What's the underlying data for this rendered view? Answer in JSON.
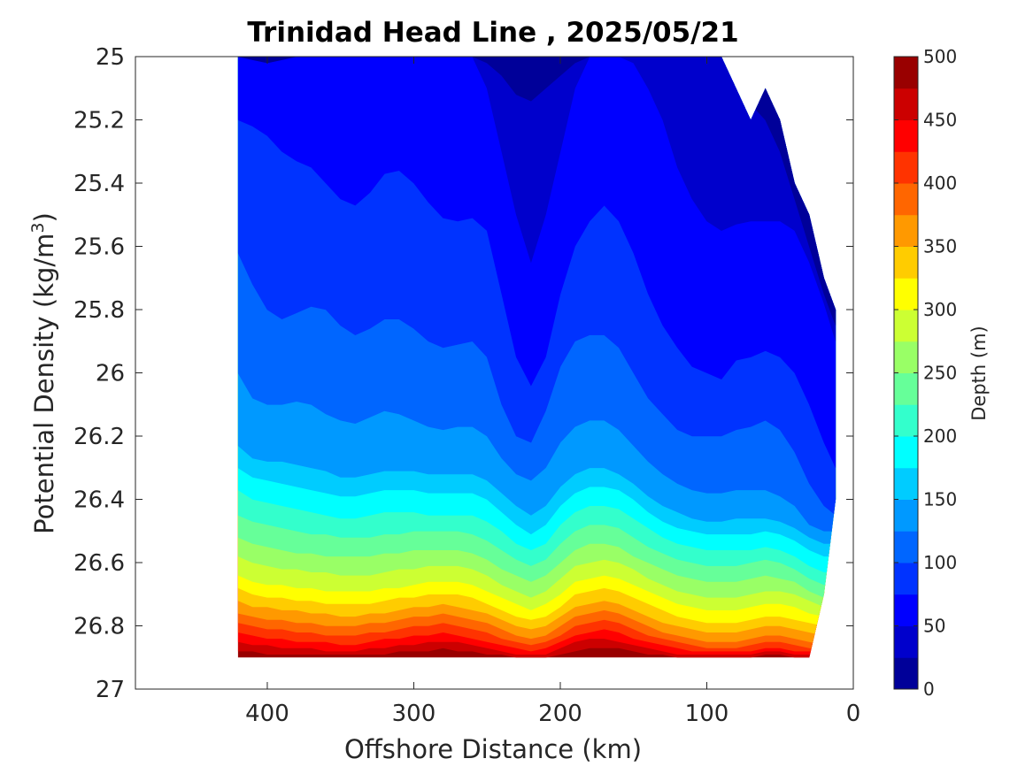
{
  "chart_data": {
    "type": "contour",
    "title": "Trinidad Head Line , 2025/05/21",
    "xlabel": "Offshore Distance (km)",
    "ylabel_main": "Potential Density (kg/m",
    "ylabel_sup": "3",
    "ylabel_tail": ")",
    "xlim": [
      490,
      0
    ],
    "x_reversed": true,
    "ylim": [
      25,
      27
    ],
    "y_reversed": true,
    "x_ticks": [
      400,
      300,
      200,
      100,
      0
    ],
    "y_ticks": [
      25,
      25.2,
      25.4,
      25.6,
      25.8,
      26,
      26.2,
      26.4,
      26.6,
      26.8,
      27
    ],
    "grid": false,
    "colorbar": {
      "label": "Depth (m)",
      "limits": [
        0,
        500
      ],
      "ticks": [
        0,
        50,
        100,
        150,
        200,
        250,
        300,
        350,
        400,
        450,
        500
      ],
      "n_levels": 20,
      "colormap": "jet"
    },
    "data_extent": {
      "x_min": 12,
      "x_max": 420,
      "y_bottom": 26.9
    },
    "stations_x": [
      420,
      410,
      400,
      390,
      380,
      370,
      360,
      350,
      340,
      330,
      320,
      310,
      300,
      290,
      280,
      270,
      260,
      250,
      240,
      230,
      220,
      210,
      200,
      190,
      180,
      170,
      160,
      150,
      140,
      130,
      120,
      110,
      100,
      90,
      80,
      70,
      60,
      50,
      40,
      30,
      20,
      12
    ],
    "top_edge_density": [
      25,
      25,
      25,
      25,
      25,
      25,
      25,
      25,
      25,
      25,
      25,
      25,
      25,
      25,
      25,
      25,
      25,
      25,
      25,
      25,
      25,
      25,
      25,
      25,
      25,
      25,
      25,
      25,
      25,
      25,
      25,
      25,
      25,
      25,
      25.1,
      25.2,
      25.1,
      25.2,
      25.4,
      25.5,
      25.7,
      25.8
    ],
    "bottom_edge_density": [
      26.9,
      26.9,
      26.9,
      26.9,
      26.9,
      26.9,
      26.9,
      26.9,
      26.9,
      26.9,
      26.9,
      26.9,
      26.9,
      26.9,
      26.9,
      26.9,
      26.9,
      26.9,
      26.9,
      26.9,
      26.9,
      26.9,
      26.9,
      26.9,
      26.9,
      26.9,
      26.9,
      26.9,
      26.9,
      26.9,
      26.9,
      26.9,
      26.9,
      26.9,
      26.9,
      26.9,
      26.9,
      26.9,
      26.9,
      26.9,
      26.7,
      26.4
    ],
    "contour_levels_m": [
      25,
      50,
      75,
      100,
      125,
      150,
      175,
      200,
      225,
      250,
      275,
      300,
      325,
      350,
      375,
      400,
      425,
      450,
      475
    ],
    "contour_density_at_level": [
      [
        25.0,
        25.01,
        25.02,
        25.01,
        25.0,
        25.0,
        25.0,
        25.0,
        25.0,
        25.0,
        25.0,
        25.0,
        25.0,
        25.0,
        25.0,
        25.0,
        25.0,
        25.02,
        25.06,
        25.12,
        25.14,
        25.1,
        25.06,
        25.02,
        25.0,
        25.0,
        25.0,
        25.0,
        25.0,
        25.0,
        25.0,
        25.0,
        25.0,
        25.0,
        25.05,
        25.15,
        25.2,
        25.3,
        25.45,
        25.6,
        25.75,
        25.85
      ],
      [
        25.0,
        25.0,
        25.0,
        25.0,
        25.0,
        25.0,
        25.0,
        25.0,
        25.0,
        25.0,
        25.0,
        25.0,
        25.0,
        25.0,
        25.0,
        25.0,
        25.0,
        25.1,
        25.3,
        25.5,
        25.65,
        25.5,
        25.3,
        25.1,
        25.0,
        25.0,
        25.0,
        25.02,
        25.1,
        25.2,
        25.35,
        25.45,
        25.52,
        25.55,
        25.53,
        25.52,
        25.52,
        25.52,
        25.55,
        25.65,
        25.78,
        25.9
      ],
      [
        25.2,
        25.22,
        25.25,
        25.3,
        25.33,
        25.35,
        25.4,
        25.45,
        25.47,
        25.43,
        25.37,
        25.36,
        25.4,
        25.46,
        25.51,
        25.52,
        25.51,
        25.55,
        25.75,
        25.95,
        26.04,
        25.95,
        25.75,
        25.6,
        25.52,
        25.47,
        25.52,
        25.62,
        25.75,
        25.85,
        25.92,
        25.98,
        26.0,
        26.02,
        25.96,
        25.95,
        25.93,
        25.95,
        26.0,
        26.1,
        26.22,
        26.3
      ],
      [
        25.62,
        25.72,
        25.8,
        25.83,
        25.81,
        25.79,
        25.8,
        25.85,
        25.88,
        25.86,
        25.83,
        25.83,
        25.86,
        25.9,
        25.92,
        25.91,
        25.9,
        25.95,
        26.1,
        26.2,
        26.22,
        26.12,
        25.98,
        25.9,
        25.88,
        25.88,
        25.92,
        26.0,
        26.08,
        26.13,
        26.18,
        26.2,
        26.2,
        26.2,
        26.18,
        26.17,
        26.15,
        26.18,
        26.25,
        26.35,
        26.42,
        26.45
      ],
      [
        26.0,
        26.08,
        26.1,
        26.1,
        26.09,
        26.1,
        26.13,
        26.15,
        26.16,
        26.14,
        26.12,
        26.13,
        26.15,
        26.17,
        26.18,
        26.17,
        26.17,
        26.2,
        26.27,
        26.32,
        26.34,
        26.3,
        26.22,
        26.17,
        26.15,
        26.15,
        26.18,
        26.23,
        26.28,
        26.32,
        26.35,
        26.37,
        26.38,
        26.38,
        26.37,
        26.37,
        26.37,
        26.39,
        26.42,
        26.48,
        26.5,
        26.5
      ],
      [
        26.23,
        26.27,
        26.28,
        26.28,
        26.29,
        26.3,
        26.31,
        26.33,
        26.33,
        26.32,
        26.31,
        26.31,
        26.31,
        26.32,
        26.32,
        26.32,
        26.32,
        26.34,
        26.38,
        26.42,
        26.45,
        26.42,
        26.36,
        26.32,
        26.3,
        26.3,
        26.32,
        26.35,
        26.39,
        26.42,
        26.44,
        26.46,
        26.47,
        26.47,
        26.46,
        26.46,
        26.46,
        26.47,
        26.49,
        26.52,
        26.54,
        26.54
      ],
      [
        26.3,
        26.33,
        26.34,
        26.35,
        26.36,
        26.37,
        26.38,
        26.39,
        26.39,
        26.38,
        26.37,
        26.37,
        26.37,
        26.38,
        26.38,
        26.38,
        26.38,
        26.4,
        26.44,
        26.48,
        26.51,
        26.48,
        26.42,
        26.38,
        26.36,
        26.36,
        26.37,
        26.4,
        26.44,
        26.47,
        26.49,
        26.5,
        26.51,
        26.51,
        26.51,
        26.51,
        26.5,
        26.51,
        26.53,
        26.56,
        26.58,
        26.58
      ],
      [
        26.37,
        26.4,
        26.41,
        26.42,
        26.43,
        26.44,
        26.45,
        26.46,
        26.46,
        26.45,
        26.44,
        26.44,
        26.44,
        26.45,
        26.45,
        26.45,
        26.45,
        26.47,
        26.5,
        26.54,
        26.56,
        26.54,
        26.48,
        26.44,
        26.42,
        26.42,
        26.43,
        26.46,
        26.49,
        26.52,
        26.54,
        26.55,
        26.56,
        26.56,
        26.56,
        26.56,
        26.55,
        26.56,
        26.58,
        26.61,
        26.63,
        26.63
      ],
      [
        26.45,
        26.47,
        26.48,
        26.49,
        26.5,
        26.51,
        26.51,
        26.52,
        26.52,
        26.52,
        26.51,
        26.51,
        26.5,
        26.5,
        26.5,
        26.5,
        26.51,
        26.53,
        26.56,
        26.59,
        26.61,
        26.59,
        26.54,
        26.5,
        26.48,
        26.48,
        26.49,
        26.52,
        26.55,
        26.57,
        26.59,
        26.6,
        26.61,
        26.61,
        26.61,
        26.6,
        26.59,
        26.6,
        26.62,
        26.65,
        26.67,
        26.67
      ],
      [
        26.52,
        26.54,
        26.55,
        26.56,
        26.57,
        26.57,
        26.58,
        26.58,
        26.58,
        26.58,
        26.57,
        26.57,
        26.56,
        26.56,
        26.56,
        26.56,
        26.57,
        26.59,
        26.62,
        26.64,
        26.66,
        26.64,
        26.6,
        26.56,
        26.54,
        26.54,
        26.55,
        26.58,
        26.6,
        26.62,
        26.64,
        26.65,
        26.66,
        26.66,
        26.66,
        26.65,
        26.64,
        26.65,
        26.66,
        26.69,
        26.71,
        26.71
      ],
      [
        26.58,
        26.6,
        26.61,
        26.62,
        26.62,
        26.63,
        26.63,
        26.64,
        26.64,
        26.64,
        26.63,
        26.62,
        26.62,
        26.61,
        26.61,
        26.61,
        26.62,
        26.64,
        26.67,
        26.69,
        26.71,
        26.69,
        26.65,
        26.61,
        26.6,
        26.59,
        26.6,
        26.62,
        26.65,
        26.67,
        26.69,
        26.7,
        26.71,
        26.71,
        26.71,
        26.7,
        26.69,
        26.69,
        26.7,
        26.72,
        26.74,
        26.74
      ],
      [
        26.64,
        26.66,
        26.67,
        26.67,
        26.68,
        26.68,
        26.69,
        26.69,
        26.69,
        26.69,
        26.68,
        26.68,
        26.67,
        26.66,
        26.66,
        26.66,
        26.67,
        26.69,
        26.71,
        26.73,
        26.75,
        26.73,
        26.7,
        26.66,
        26.65,
        26.64,
        26.65,
        26.67,
        26.69,
        26.71,
        26.73,
        26.74,
        26.75,
        26.75,
        26.75,
        26.74,
        26.73,
        26.73,
        26.74,
        26.76,
        26.77,
        26.77
      ],
      [
        26.68,
        26.7,
        26.71,
        26.71,
        26.72,
        26.72,
        26.73,
        26.73,
        26.73,
        26.73,
        26.72,
        26.71,
        26.71,
        26.7,
        26.7,
        26.7,
        26.71,
        26.73,
        26.75,
        26.77,
        26.78,
        26.77,
        26.74,
        26.7,
        26.69,
        26.68,
        26.69,
        26.71,
        26.73,
        26.75,
        26.77,
        26.78,
        26.79,
        26.79,
        26.79,
        26.78,
        26.77,
        26.77,
        26.78,
        26.79,
        26.8,
        26.8
      ],
      [
        26.72,
        26.74,
        26.74,
        26.75,
        26.75,
        26.76,
        26.76,
        26.77,
        26.77,
        26.76,
        26.76,
        26.75,
        26.74,
        26.74,
        26.73,
        26.74,
        26.75,
        26.76,
        26.78,
        26.8,
        26.81,
        26.8,
        26.77,
        26.74,
        26.73,
        26.72,
        26.73,
        26.75,
        26.77,
        26.79,
        26.8,
        26.81,
        26.82,
        26.82,
        26.82,
        26.81,
        26.8,
        26.8,
        26.81,
        26.82,
        26.83,
        26.83
      ],
      [
        26.76,
        26.77,
        26.78,
        26.78,
        26.79,
        26.79,
        26.8,
        26.8,
        26.8,
        26.79,
        26.79,
        26.78,
        26.77,
        26.77,
        26.76,
        26.77,
        26.78,
        26.79,
        26.81,
        26.83,
        26.84,
        26.83,
        26.8,
        26.77,
        26.76,
        26.75,
        26.76,
        26.78,
        26.8,
        26.82,
        26.83,
        26.84,
        26.85,
        26.85,
        26.85,
        26.84,
        26.83,
        26.83,
        26.84,
        26.85,
        26.86,
        26.86
      ],
      [
        26.79,
        26.8,
        26.81,
        26.81,
        26.82,
        26.82,
        26.83,
        26.83,
        26.83,
        26.82,
        26.82,
        26.81,
        26.8,
        26.8,
        26.79,
        26.8,
        26.81,
        26.82,
        26.84,
        26.85,
        26.86,
        26.85,
        26.83,
        26.8,
        26.79,
        26.78,
        26.79,
        26.81,
        26.83,
        26.84,
        26.85,
        26.86,
        26.87,
        26.87,
        26.87,
        26.86,
        26.85,
        26.85,
        26.86,
        26.87,
        26.88,
        26.88
      ],
      [
        26.82,
        26.83,
        26.84,
        26.84,
        26.85,
        26.85,
        26.85,
        26.86,
        26.86,
        26.85,
        26.84,
        26.84,
        26.83,
        26.83,
        26.82,
        26.83,
        26.84,
        26.85,
        26.86,
        26.87,
        26.88,
        26.87,
        26.85,
        26.83,
        26.82,
        26.81,
        26.82,
        26.84,
        26.85,
        26.86,
        26.87,
        26.88,
        26.88,
        26.88,
        26.88,
        26.88,
        26.87,
        26.87,
        26.88,
        26.88,
        26.89,
        26.89
      ],
      [
        26.85,
        26.86,
        26.86,
        26.87,
        26.87,
        26.87,
        26.88,
        26.88,
        26.88,
        26.87,
        26.87,
        26.86,
        26.86,
        26.85,
        26.85,
        26.85,
        26.86,
        26.87,
        26.88,
        26.89,
        26.89,
        26.89,
        26.87,
        26.85,
        26.84,
        26.84,
        26.85,
        26.86,
        26.87,
        26.88,
        26.89,
        26.89,
        26.89,
        26.89,
        26.89,
        26.89,
        26.88,
        26.88,
        26.89,
        26.89,
        26.9,
        26.9
      ],
      [
        26.88,
        26.88,
        26.89,
        26.89,
        26.89,
        26.89,
        26.89,
        26.89,
        26.89,
        26.89,
        26.89,
        26.88,
        26.88,
        26.88,
        26.87,
        26.88,
        26.88,
        26.89,
        26.89,
        26.9,
        26.9,
        26.9,
        26.89,
        26.88,
        26.87,
        26.87,
        26.87,
        26.88,
        26.89,
        26.89,
        26.9,
        26.9,
        26.9,
        26.9,
        26.9,
        26.9,
        26.89,
        26.89,
        26.9,
        26.9,
        26.9,
        26.9
      ]
    ]
  }
}
